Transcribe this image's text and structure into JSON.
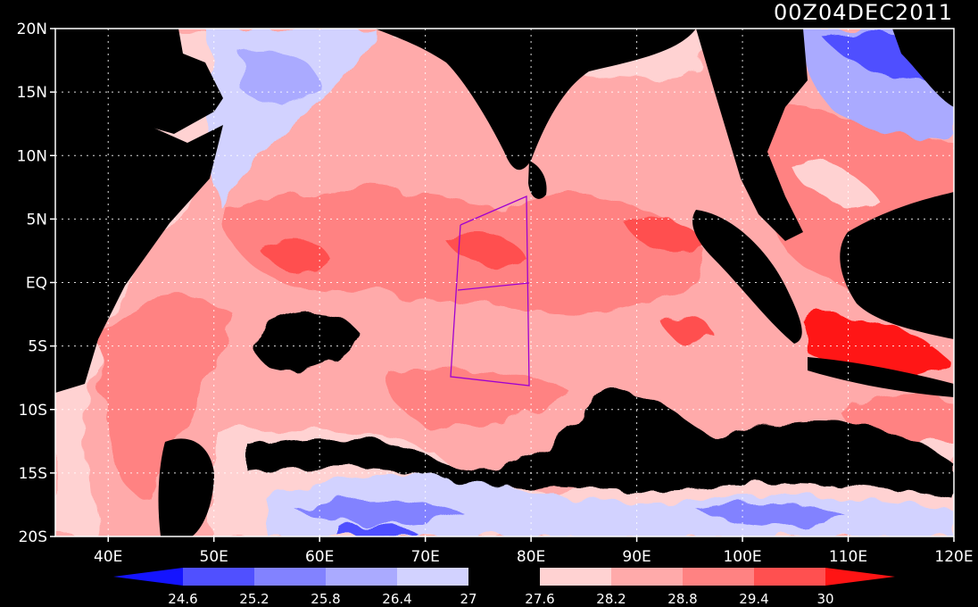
{
  "map": {
    "timestamp": "00Z04DEC2011",
    "lat_labels": [
      "20N",
      "15N",
      "10N",
      "5N",
      "EQ",
      "5S",
      "10S",
      "15S",
      "20S"
    ],
    "lon_labels": [
      "40E",
      "50E",
      "60E",
      "70E",
      "80E",
      "90E",
      "100E",
      "110E",
      "120E"
    ],
    "domain": {
      "lon_range": [
        35,
        120
      ],
      "lat_range": [
        -20,
        20
      ]
    },
    "grid": "dotted, every 10 degrees longitude and 5 degrees latitude",
    "land_color": "#000000",
    "region_outline_color": "#a000d0",
    "colorbar": {
      "ticks": [
        "24.6",
        "25.2",
        "25.8",
        "26.4",
        "27",
        "27.6",
        "28.2",
        "28.8",
        "29.4",
        "30"
      ],
      "colors": [
        "#1414ff",
        "#5050ff",
        "#8282ff",
        "#aaaaff",
        "#d2d2ff",
        "#000000",
        "#ffd2d2",
        "#ffaaaa",
        "#ff8282",
        "#ff5050",
        "#ff1414"
      ]
    }
  }
}
